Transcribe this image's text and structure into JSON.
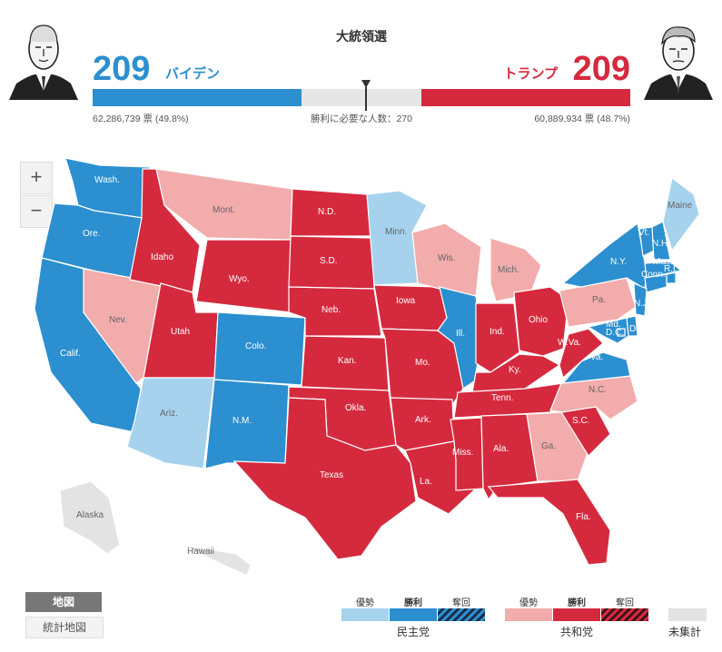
{
  "header": {
    "title": "大統領選",
    "dem": {
      "score": "209",
      "name": "バイデン",
      "votes": "62,286,739 票 (49.8%)",
      "color": "#2b8fd0"
    },
    "rep": {
      "score": "209",
      "name": "トランプ",
      "votes": "60,889,934 票 (48.7%)",
      "color": "#d52a3e"
    },
    "needed": "勝利に必要な人数：270",
    "bar": {
      "dem_fraction": 0.388,
      "undecided_fraction": 0.224,
      "rep_fraction": 0.388,
      "undecided_color": "#e6e6e6"
    }
  },
  "zoom": {
    "in": "+",
    "out": "−"
  },
  "colors": {
    "dem_lead": "#a6d2ed",
    "dem_win": "#2b8fd0",
    "rep_lead": "#f2acac",
    "rep_win": "#d52a3e",
    "uncounted": "#e3e3e3"
  },
  "states": [
    {
      "abbr": "Wash.",
      "status": "dem_win"
    },
    {
      "abbr": "Ore.",
      "status": "dem_win"
    },
    {
      "abbr": "Calif.",
      "status": "dem_win"
    },
    {
      "abbr": "Nev.",
      "status": "rep_lead"
    },
    {
      "abbr": "Idaho",
      "status": "rep_win"
    },
    {
      "abbr": "Mont.",
      "status": "rep_lead"
    },
    {
      "abbr": "Wyo.",
      "status": "rep_win"
    },
    {
      "abbr": "Utah",
      "status": "rep_win"
    },
    {
      "abbr": "Ariz.",
      "status": "dem_lead"
    },
    {
      "abbr": "Colo.",
      "status": "dem_win"
    },
    {
      "abbr": "N.M.",
      "status": "dem_win"
    },
    {
      "abbr": "N.D.",
      "status": "rep_win"
    },
    {
      "abbr": "S.D.",
      "status": "rep_win"
    },
    {
      "abbr": "Neb.",
      "status": "rep_win"
    },
    {
      "abbr": "Kan.",
      "status": "rep_win"
    },
    {
      "abbr": "Okla.",
      "status": "rep_win"
    },
    {
      "abbr": "Texas",
      "status": "rep_win"
    },
    {
      "abbr": "Minn.",
      "status": "dem_lead"
    },
    {
      "abbr": "Iowa",
      "status": "rep_win"
    },
    {
      "abbr": "Mo.",
      "status": "rep_win"
    },
    {
      "abbr": "Ark.",
      "status": "rep_win"
    },
    {
      "abbr": "La.",
      "status": "rep_win"
    },
    {
      "abbr": "Wis.",
      "status": "rep_lead"
    },
    {
      "abbr": "Ill.",
      "status": "dem_win"
    },
    {
      "abbr": "Mich.",
      "status": "rep_lead"
    },
    {
      "abbr": "Ind.",
      "status": "rep_win"
    },
    {
      "abbr": "Ohio",
      "status": "rep_win"
    },
    {
      "abbr": "Ky.",
      "status": "rep_win"
    },
    {
      "abbr": "Tenn.",
      "status": "rep_win"
    },
    {
      "abbr": "Miss.",
      "status": "rep_win"
    },
    {
      "abbr": "Ala.",
      "status": "rep_win"
    },
    {
      "abbr": "Ga.",
      "status": "rep_lead"
    },
    {
      "abbr": "Fla.",
      "status": "rep_win"
    },
    {
      "abbr": "S.C.",
      "status": "rep_win"
    },
    {
      "abbr": "N.C.",
      "status": "rep_lead"
    },
    {
      "abbr": "Va.",
      "status": "dem_win"
    },
    {
      "abbr": "W.Va.",
      "status": "rep_win"
    },
    {
      "abbr": "Pa.",
      "status": "rep_lead"
    },
    {
      "abbr": "N.Y.",
      "status": "dem_win"
    },
    {
      "abbr": "Vt.",
      "status": "dem_win"
    },
    {
      "abbr": "N.H.",
      "status": "dem_win"
    },
    {
      "abbr": "Maine",
      "status": "dem_lead"
    },
    {
      "abbr": "Mass.",
      "status": "dem_win"
    },
    {
      "abbr": "R.I.",
      "status": "dem_win"
    },
    {
      "abbr": "Conn.",
      "status": "dem_win"
    },
    {
      "abbr": "N.J.",
      "status": "dem_win"
    },
    {
      "abbr": "Del.",
      "status": "dem_win"
    },
    {
      "abbr": "Md.",
      "status": "dem_win"
    },
    {
      "abbr": "D.C.",
      "status": "dem_win"
    },
    {
      "abbr": "Alaska",
      "status": "uncounted"
    },
    {
      "abbr": "Hawaii",
      "status": "uncounted"
    }
  ],
  "view_toggle": {
    "map": "地図",
    "stat_map": "統計地図"
  },
  "legend": {
    "dem": {
      "lead": "優勢",
      "win": "勝利",
      "flip": "奪回",
      "title": "民主党"
    },
    "rep": {
      "lead": "優勢",
      "win": "勝利",
      "flip": "奪回",
      "title": "共和党"
    },
    "uncounted": "未集計"
  }
}
